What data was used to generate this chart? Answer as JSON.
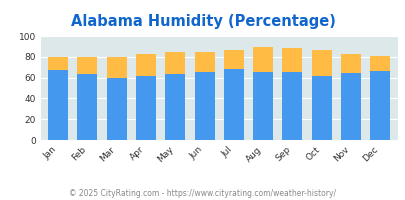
{
  "title": "Alabama Humidity (Percentage)",
  "months": [
    "Jan",
    "Feb",
    "Mar",
    "Apr",
    "May",
    "Jun",
    "Jul",
    "Aug",
    "Sep",
    "Oct",
    "Nov",
    "Dec"
  ],
  "humidity_pm": [
    67,
    63,
    60,
    62,
    63,
    65,
    68,
    65,
    65,
    62,
    64,
    66
  ],
  "humidity_am_top": [
    13,
    17,
    20,
    21,
    22,
    20,
    19,
    24,
    23,
    25,
    19,
    15
  ],
  "color_pm": "#4499ee",
  "color_am": "#ffbb44",
  "color_bg": "#dde8ea",
  "ylim": [
    0,
    100
  ],
  "yticks": [
    0,
    20,
    40,
    60,
    80,
    100
  ],
  "legend_am_color": "#cc6600",
  "legend_pm_color": "#1166cc",
  "title_color": "#1166cc",
  "title_fontsize": 10.5,
  "axis_label_fontsize": 6.5,
  "legend_fontsize": 7.5,
  "footer_text": "© 2025 CityRating.com - https://www.cityrating.com/weather-history/",
  "footer_color": "#888888",
  "footer_fontsize": 5.5
}
